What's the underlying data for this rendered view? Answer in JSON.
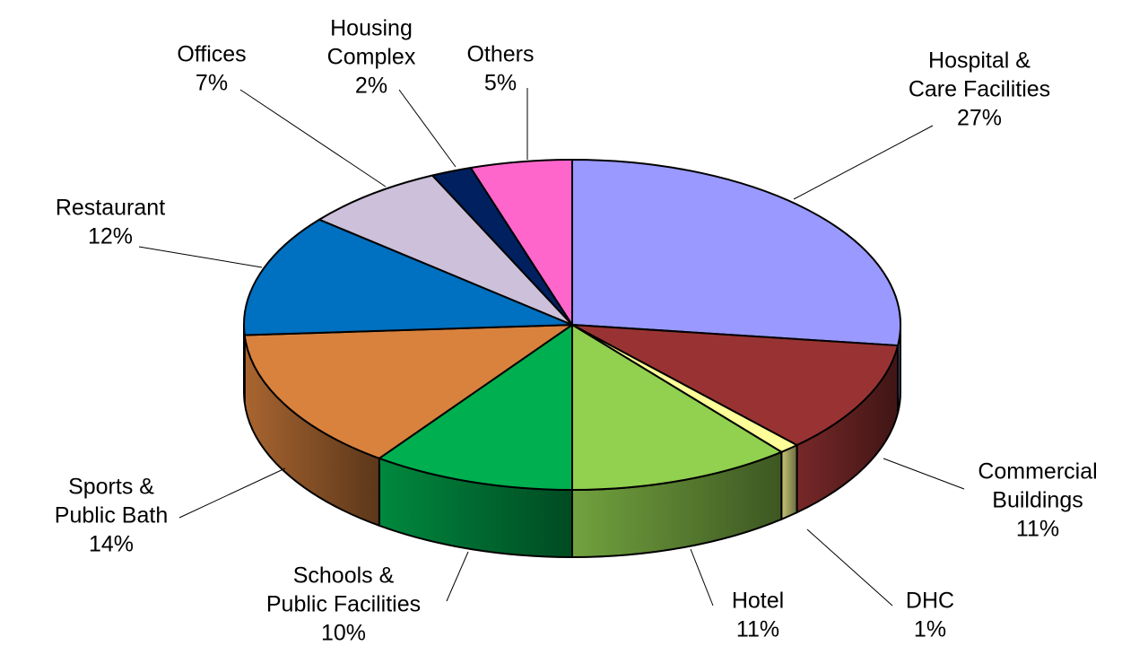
{
  "chart_data": {
    "type": "pie",
    "style": "3d-exploded-tilted",
    "slices": [
      {
        "label": [
          "Hospital &",
          "Care Facilities"
        ],
        "pct_text": "27%",
        "value": 27,
        "color": "#9999FF"
      },
      {
        "label": [
          "Commercial",
          "Buildings"
        ],
        "pct_text": "11%",
        "value": 11,
        "color": "#993333"
      },
      {
        "label": [
          "DHC"
        ],
        "pct_text": "1%",
        "value": 1,
        "color": "#FFFF99"
      },
      {
        "label": [
          "Hotel"
        ],
        "pct_text": "11%",
        "value": 11,
        "color": "#92D050"
      },
      {
        "label": [
          "Schools &",
          "Public Facilities"
        ],
        "pct_text": "10%",
        "value": 10,
        "color": "#00B050"
      },
      {
        "label": [
          "Sports &",
          "Public Bath"
        ],
        "pct_text": "14%",
        "value": 14,
        "color": "#D9823E"
      },
      {
        "label": [
          "Restaurant"
        ],
        "pct_text": "12%",
        "value": 12,
        "color": "#0070C0"
      },
      {
        "label": [
          "Offices"
        ],
        "pct_text": "7%",
        "value": 7,
        "color": "#CCC0DA"
      },
      {
        "label": [
          "Housing",
          "Complex"
        ],
        "pct_text": "2%",
        "value": 2,
        "color": "#002060"
      },
      {
        "label": [
          "Others"
        ],
        "pct_text": "5%",
        "value": 5,
        "color": "#FF66CC"
      }
    ],
    "title": "",
    "legend": "none"
  }
}
